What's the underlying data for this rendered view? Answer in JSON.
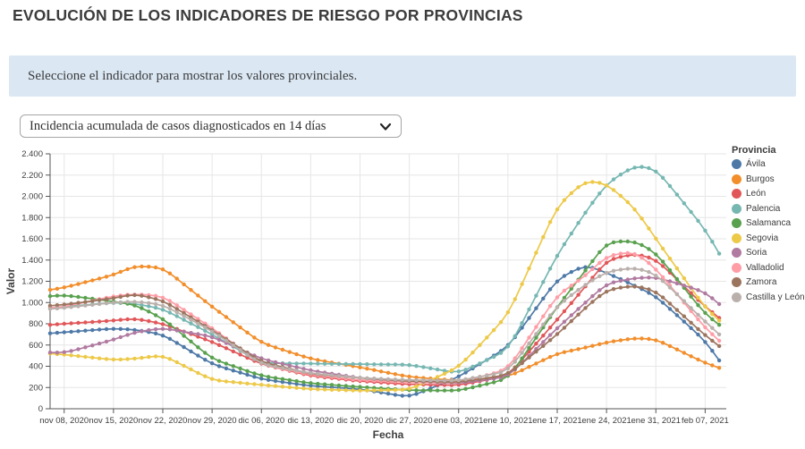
{
  "page": {
    "title": "EVOLUCIÓN DE LOS INDICADORES DE RIESGO POR PROVINCIAS",
    "info_message": "Seleccione el indicador para mostrar los valores provinciales.",
    "dropdown": {
      "selected": "Incidencia acumulada de casos diagnosticados en 14 días",
      "icon": "chevron-down"
    }
  },
  "chart_data": {
    "type": "line",
    "title": "",
    "xlabel": "Fecha",
    "ylabel": "Valor",
    "ylim": [
      0,
      2400
    ],
    "grid": true,
    "legend_title": "Provincia",
    "legend_position": "right",
    "x_unit": "day index, day 0 = nov 06, 2020",
    "x_domain": [
      0,
      96
    ],
    "x_anchors": [
      0,
      2,
      9,
      12,
      16,
      23,
      30,
      37,
      44,
      51,
      58,
      65,
      72,
      76,
      79,
      83,
      86,
      93,
      95
    ],
    "x_anchor_dates": [
      "nov 06, 2020",
      "nov 08, 2020",
      "nov 15, 2020",
      "nov 18, 2020",
      "nov 22, 2020",
      "nov 29, 2020",
      "dic 06, 2020",
      "dic 13, 2020",
      "dic 20, 2020",
      "dic 27, 2020",
      "ene 03, 2021",
      "ene 10, 2021",
      "ene 17, 2021",
      "ene 21, 2021",
      "ene 24, 2021",
      "ene 28, 2021",
      "ene 31, 2021",
      "feb 07, 2021",
      "feb 09, 2021"
    ],
    "x_ticks": [
      {
        "day": 2,
        "label": "nov 08, 2020"
      },
      {
        "day": 9,
        "label": "nov 15, 2020"
      },
      {
        "day": 16,
        "label": "nov 22, 2020"
      },
      {
        "day": 23,
        "label": "nov 29, 2020"
      },
      {
        "day": 30,
        "label": "dic 06, 2020"
      },
      {
        "day": 37,
        "label": "dic 13, 2020"
      },
      {
        "day": 44,
        "label": "dic 20, 2020"
      },
      {
        "day": 51,
        "label": "dic 27, 2020"
      },
      {
        "day": 58,
        "label": "ene 03, 2021"
      },
      {
        "day": 65,
        "label": "ene 10, 2021"
      },
      {
        "day": 72,
        "label": "ene 17, 2021"
      },
      {
        "day": 79,
        "label": "ene 24, 2021"
      },
      {
        "day": 86,
        "label": "ene 31, 2021"
      },
      {
        "day": 93,
        "label": "feb 07, 2021"
      }
    ],
    "y_ticks": [
      {
        "value": 0,
        "label": "0"
      },
      {
        "value": 200,
        "label": "200"
      },
      {
        "value": 400,
        "label": "400"
      },
      {
        "value": 600,
        "label": "600"
      },
      {
        "value": 800,
        "label": "800"
      },
      {
        "value": 1000,
        "label": "1.000"
      },
      {
        "value": 1200,
        "label": "1.200"
      },
      {
        "value": 1400,
        "label": "1.400"
      },
      {
        "value": 1600,
        "label": "1.600"
      },
      {
        "value": 1800,
        "label": "1.800"
      },
      {
        "value": 2000,
        "label": "2.000"
      },
      {
        "value": 2200,
        "label": "2.200"
      },
      {
        "value": 2400,
        "label": "2.400"
      }
    ],
    "series": [
      {
        "name": "Ávila",
        "color": "#4e79a7",
        "values": [
          710,
          720,
          755,
          745,
          700,
          420,
          280,
          215,
          185,
          110,
          300,
          580,
          1220,
          1355,
          1280,
          1160,
          1060,
          640,
          455
        ]
      },
      {
        "name": "Burgos",
        "color": "#f28e2b",
        "values": [
          1120,
          1140,
          1260,
          1345,
          1330,
          960,
          620,
          470,
          390,
          300,
          265,
          300,
          520,
          575,
          625,
          665,
          655,
          430,
          385
        ]
      },
      {
        "name": "León",
        "color": "#e15759",
        "values": [
          790,
          800,
          830,
          850,
          800,
          630,
          420,
          310,
          260,
          230,
          220,
          310,
          840,
          1150,
          1400,
          1460,
          1410,
          960,
          855
        ]
      },
      {
        "name": "Palencia",
        "color": "#76b7b2",
        "values": [
          950,
          960,
          1000,
          990,
          940,
          700,
          430,
          425,
          420,
          415,
          335,
          550,
          1450,
          1850,
          2120,
          2290,
          2260,
          1690,
          1460
        ]
      },
      {
        "name": "Salamanca",
        "color": "#59a14f",
        "values": [
          1060,
          1070,
          1010,
          980,
          850,
          470,
          310,
          240,
          205,
          175,
          170,
          280,
          960,
          1300,
          1570,
          1580,
          1470,
          890,
          790
        ]
      },
      {
        "name": "Segovia",
        "color": "#edc948",
        "values": [
          520,
          510,
          460,
          470,
          505,
          270,
          225,
          185,
          170,
          180,
          390,
          880,
          1910,
          2150,
          2120,
          1890,
          1600,
          950,
          830
        ]
      },
      {
        "name": "Soria",
        "color": "#b07aa1",
        "values": [
          530,
          525,
          650,
          720,
          760,
          680,
          470,
          360,
          290,
          250,
          240,
          300,
          760,
          1000,
          1180,
          1230,
          1240,
          1100,
          985
        ]
      },
      {
        "name": "Valladolid",
        "color": "#ff9da7",
        "values": [
          950,
          960,
          1060,
          1080,
          1060,
          760,
          420,
          320,
          270,
          250,
          245,
          370,
          1070,
          1250,
          1440,
          1480,
          1320,
          760,
          640
        ]
      },
      {
        "name": "Zamora",
        "color": "#9c755f",
        "values": [
          970,
          980,
          1040,
          1080,
          1020,
          740,
          440,
          330,
          290,
          260,
          250,
          320,
          700,
          950,
          1120,
          1160,
          1110,
          690,
          590
        ]
      },
      {
        "name": "Castilla y León",
        "color": "#bab0ac",
        "values": [
          940,
          950,
          1000,
          1010,
          980,
          730,
          420,
          335,
          290,
          270,
          265,
          350,
          970,
          1170,
          1290,
          1330,
          1270,
          820,
          700
        ]
      }
    ],
    "style": {
      "grid_color": "#e6e6e6",
      "axis_color": "#555555",
      "tick_label_color": "#3e3e3e",
      "line_width": 1.7,
      "marker_radius": 2.2
    }
  }
}
